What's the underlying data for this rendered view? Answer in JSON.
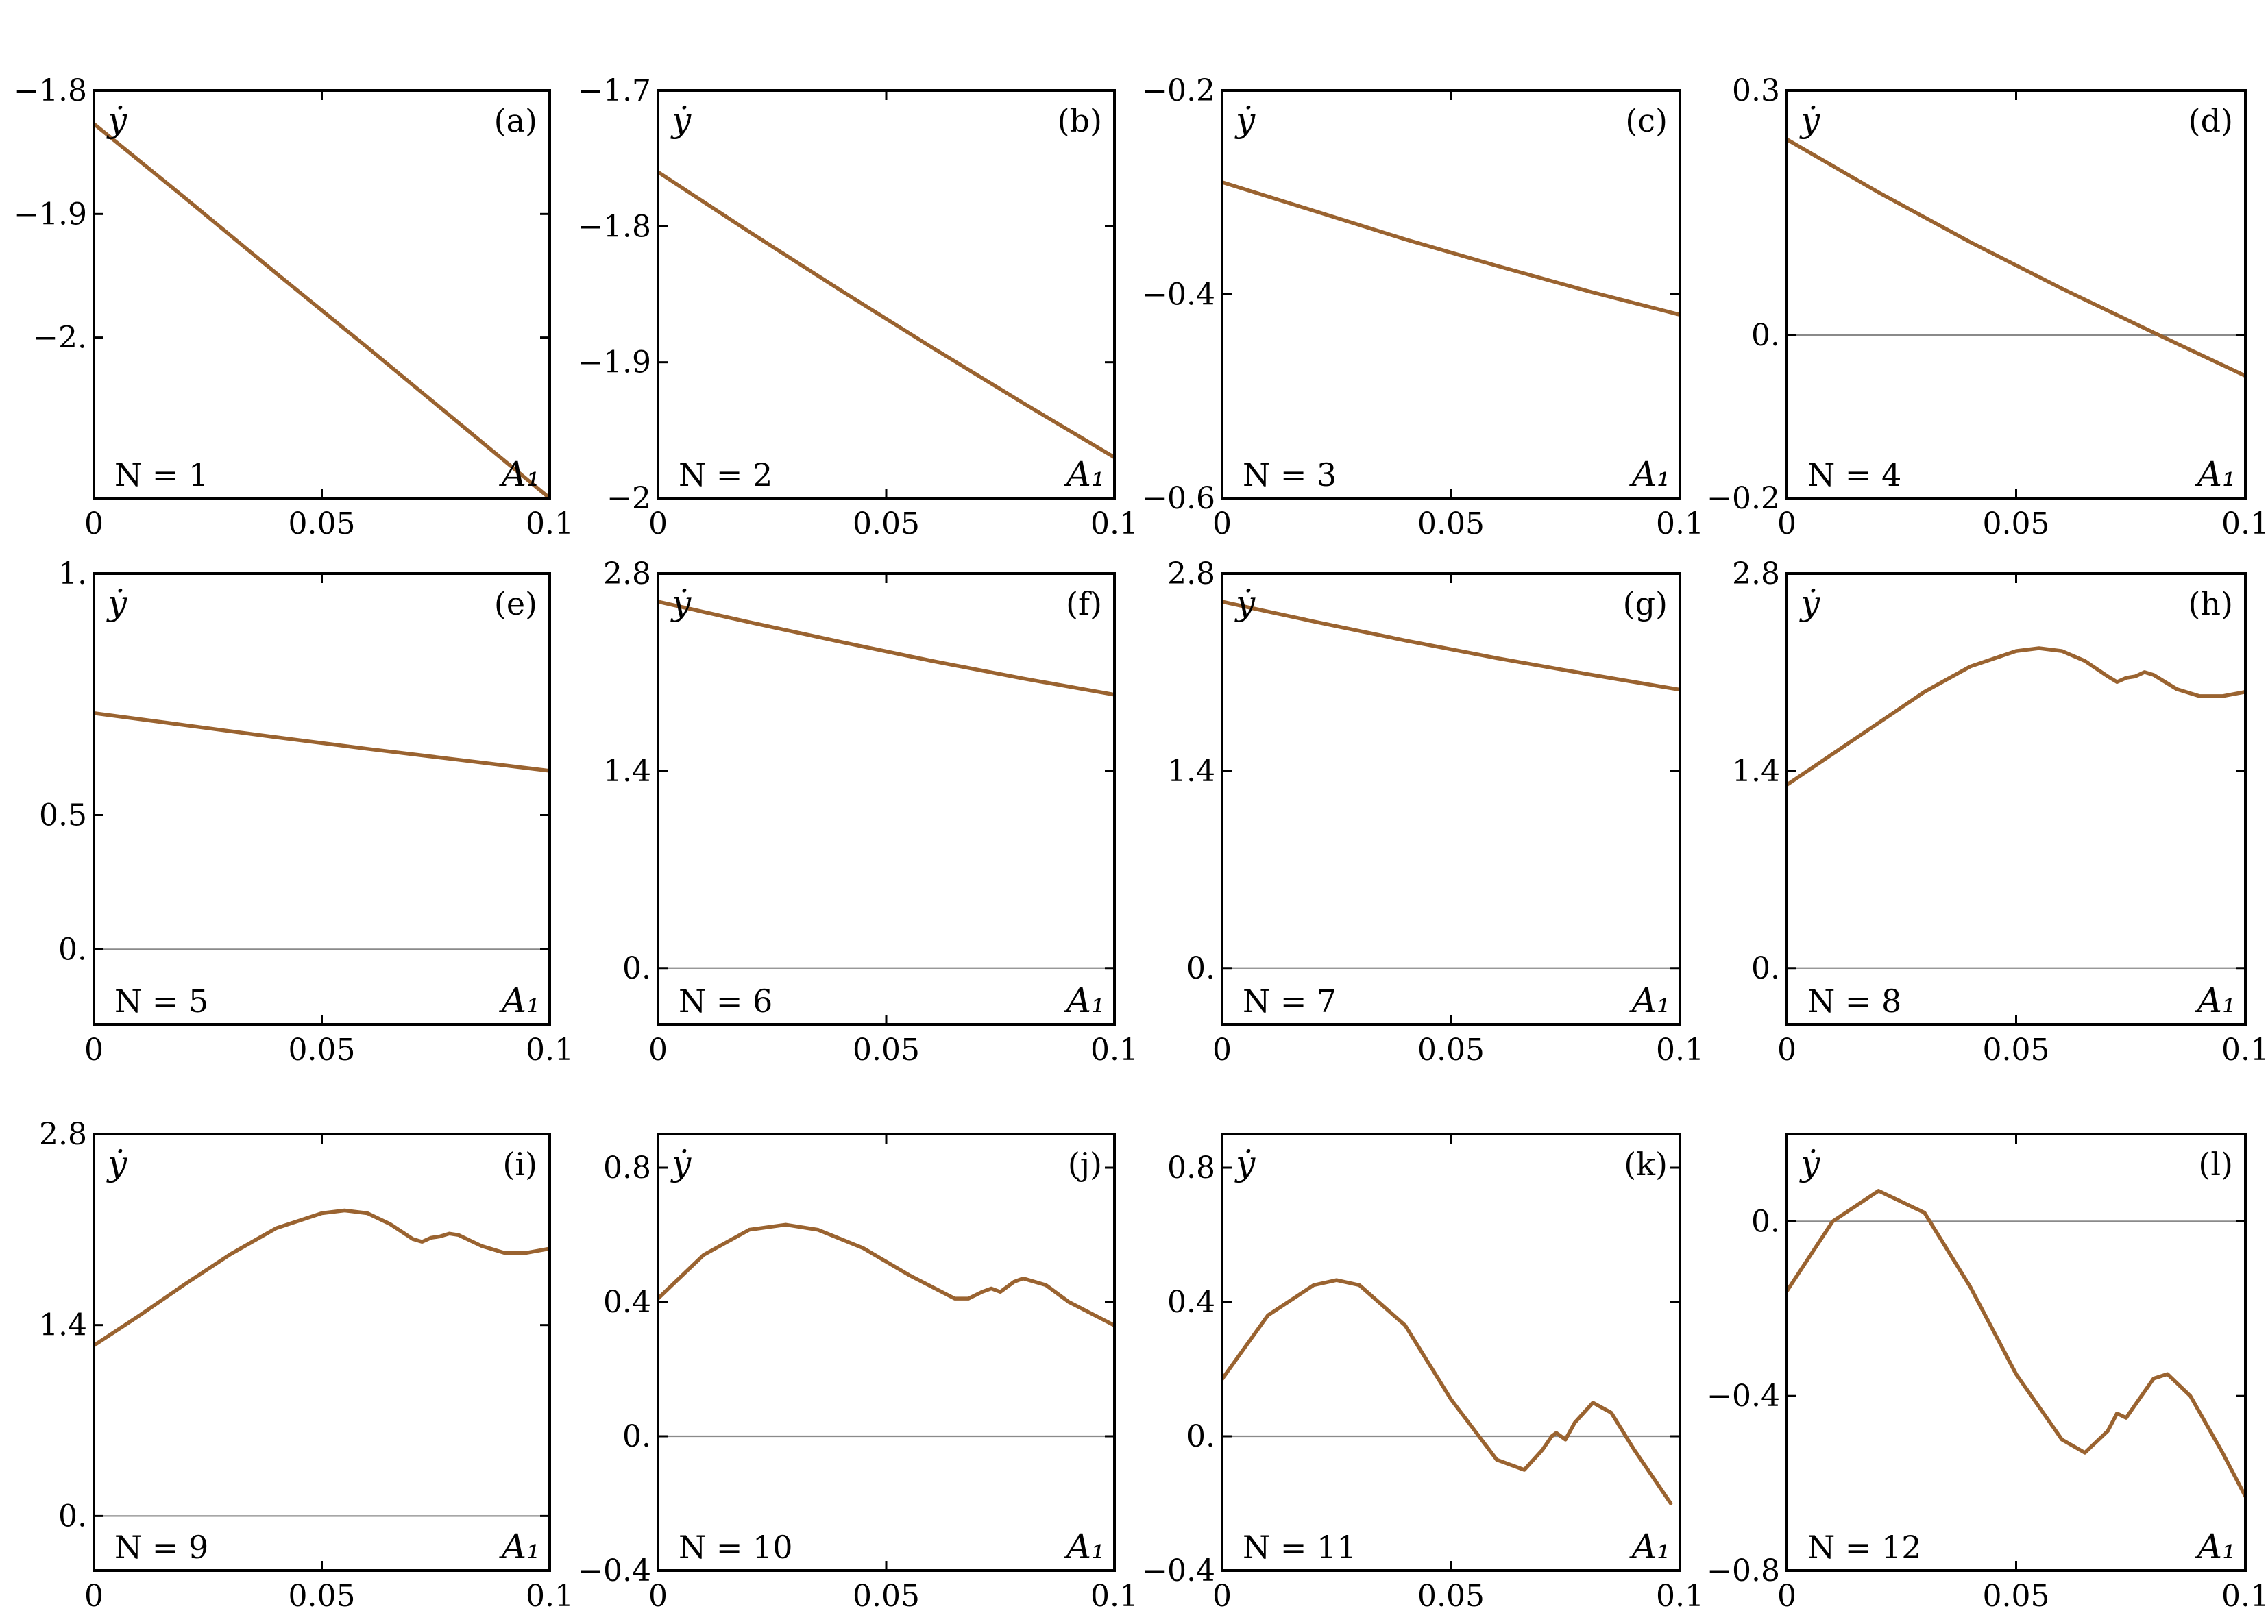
{
  "colors": {
    "curve": "#9a6330",
    "zero_line": "#8a8a8a",
    "frame": "#000000"
  },
  "chart_data": [
    {
      "type": "line",
      "panel": "(a)",
      "n_label": "N = 1",
      "xlabel": "A₁",
      "ylabel": "ẏ",
      "xlim": [
        0,
        0.1
      ],
      "ylim": [
        -2.13,
        -1.8
      ],
      "xticks": [
        {
          "v": 0,
          "label": "0"
        },
        {
          "v": 0.05,
          "label": "0.05"
        },
        {
          "v": 0.1,
          "label": "0.1"
        }
      ],
      "yticks": [
        {
          "v": -1.8,
          "label": "−1.8"
        },
        {
          "v": -1.9,
          "label": "−1.9"
        },
        {
          "v": -2.0,
          "label": "−2."
        }
      ],
      "zero_line": false,
      "x": [
        0,
        0.02,
        0.04,
        0.06,
        0.08,
        0.1
      ],
      "y": [
        -1.827,
        -1.887,
        -1.948,
        -2.008,
        -2.069,
        -2.13
      ]
    },
    {
      "type": "line",
      "panel": "(b)",
      "n_label": "N = 2",
      "xlabel": "A₁",
      "ylabel": "ẏ",
      "xlim": [
        0,
        0.1
      ],
      "ylim": [
        -2.0,
        -1.7
      ],
      "xticks": [
        {
          "v": 0,
          "label": "0"
        },
        {
          "v": 0.05,
          "label": "0.05"
        },
        {
          "v": 0.1,
          "label": "0.1"
        }
      ],
      "yticks": [
        {
          "v": -1.7,
          "label": "−1.7"
        },
        {
          "v": -1.8,
          "label": "−1.8"
        },
        {
          "v": -1.9,
          "label": "−1.9"
        },
        {
          "v": -2.0,
          "label": "−2"
        }
      ],
      "zero_line": false,
      "x": [
        0,
        0.02,
        0.04,
        0.06,
        0.08,
        0.1
      ],
      "y": [
        -1.76,
        -1.804,
        -1.847,
        -1.889,
        -1.93,
        -1.97
      ]
    },
    {
      "type": "line",
      "panel": "(c)",
      "n_label": "N = 3",
      "xlabel": "A₁",
      "ylabel": "ẏ",
      "xlim": [
        0,
        0.1
      ],
      "ylim": [
        -0.6,
        -0.2
      ],
      "xticks": [
        {
          "v": 0,
          "label": "0"
        },
        {
          "v": 0.05,
          "label": "0.05"
        },
        {
          "v": 0.1,
          "label": "0.1"
        }
      ],
      "yticks": [
        {
          "v": -0.2,
          "label": "−0.2"
        },
        {
          "v": -0.4,
          "label": "−0.4"
        },
        {
          "v": -0.6,
          "label": "−0.6"
        }
      ],
      "zero_line": false,
      "x": [
        0,
        0.02,
        0.04,
        0.06,
        0.08,
        0.1
      ],
      "y": [
        -0.29,
        -0.318,
        -0.346,
        -0.372,
        -0.397,
        -0.42
      ]
    },
    {
      "type": "line",
      "panel": "(d)",
      "n_label": "N = 4",
      "xlabel": "A₁",
      "ylabel": "ẏ",
      "xlim": [
        0,
        0.1
      ],
      "ylim": [
        -0.2,
        0.3
      ],
      "xticks": [
        {
          "v": 0,
          "label": "0"
        },
        {
          "v": 0.05,
          "label": "0.05"
        },
        {
          "v": 0.1,
          "label": "0.1"
        }
      ],
      "yticks": [
        {
          "v": 0.3,
          "label": "0.3"
        },
        {
          "v": 0.0,
          "label": "0."
        },
        {
          "v": -0.2,
          "label": "−0.2"
        }
      ],
      "zero_line": true,
      "x": [
        0,
        0.02,
        0.04,
        0.06,
        0.08,
        0.1
      ],
      "y": [
        0.24,
        0.175,
        0.114,
        0.057,
        0.003,
        -0.05
      ]
    },
    {
      "type": "line",
      "panel": "(e)",
      "n_label": "N = 5",
      "xlabel": "A₁",
      "ylabel": "ẏ",
      "xlim": [
        0,
        0.1
      ],
      "ylim": [
        -0.28,
        1.4
      ],
      "xticks": [
        {
          "v": 0,
          "label": "0"
        },
        {
          "v": 0.05,
          "label": "0.05"
        },
        {
          "v": 0.1,
          "label": "0.1"
        }
      ],
      "yticks": [
        {
          "v": 1.4,
          "label": "1."
        },
        {
          "v": 0.5,
          "label": "0.5"
        },
        {
          "v": 0.0,
          "label": "0."
        }
      ],
      "zero_line": true,
      "x": [
        0,
        0.02,
        0.04,
        0.06,
        0.08,
        0.1
      ],
      "y": [
        0.88,
        0.835,
        0.79,
        0.747,
        0.706,
        0.665
      ]
    },
    {
      "type": "line",
      "panel": "(f)",
      "n_label": "N = 6",
      "xlabel": "A₁",
      "ylabel": "ẏ",
      "xlim": [
        0,
        0.1
      ],
      "ylim": [
        -0.4,
        2.8
      ],
      "xticks": [
        {
          "v": 0,
          "label": "0"
        },
        {
          "v": 0.05,
          "label": "0.05"
        },
        {
          "v": 0.1,
          "label": "0.1"
        }
      ],
      "yticks": [
        {
          "v": 2.8,
          "label": "2.8"
        },
        {
          "v": 1.4,
          "label": "1.4"
        },
        {
          "v": 0.0,
          "label": "0."
        }
      ],
      "zero_line": true,
      "x": [
        0,
        0.02,
        0.04,
        0.06,
        0.08,
        0.1
      ],
      "y": [
        2.6,
        2.455,
        2.315,
        2.18,
        2.055,
        1.94
      ]
    },
    {
      "type": "line",
      "panel": "(g)",
      "n_label": "N = 7",
      "xlabel": "A₁",
      "ylabel": "ẏ",
      "xlim": [
        0,
        0.1
      ],
      "ylim": [
        -0.4,
        2.8
      ],
      "xticks": [
        {
          "v": 0,
          "label": "0"
        },
        {
          "v": 0.05,
          "label": "0.05"
        },
        {
          "v": 0.1,
          "label": "0.1"
        }
      ],
      "yticks": [
        {
          "v": 2.8,
          "label": "2.8"
        },
        {
          "v": 1.4,
          "label": "1.4"
        },
        {
          "v": 0.0,
          "label": "0."
        }
      ],
      "zero_line": true,
      "x": [
        0,
        0.02,
        0.04,
        0.06,
        0.08,
        0.1
      ],
      "y": [
        2.6,
        2.46,
        2.325,
        2.2,
        2.085,
        1.975
      ]
    },
    {
      "type": "line",
      "panel": "(h)",
      "n_label": "N = 8",
      "xlabel": "A₁",
      "ylabel": "ẏ",
      "xlim": [
        0,
        0.1
      ],
      "ylim": [
        -0.4,
        2.8
      ],
      "xticks": [
        {
          "v": 0,
          "label": "0"
        },
        {
          "v": 0.05,
          "label": "0.05"
        },
        {
          "v": 0.1,
          "label": "0.1"
        }
      ],
      "yticks": [
        {
          "v": 2.8,
          "label": "2.8"
        },
        {
          "v": 1.4,
          "label": "1.4"
        },
        {
          "v": 0.0,
          "label": "0."
        }
      ],
      "zero_line": true,
      "x": [
        0,
        0.01,
        0.02,
        0.03,
        0.04,
        0.05,
        0.055,
        0.06,
        0.065,
        0.07,
        0.072,
        0.074,
        0.076,
        0.078,
        0.08,
        0.085,
        0.09,
        0.095,
        0.1
      ],
      "y": [
        1.3,
        1.52,
        1.74,
        1.96,
        2.14,
        2.25,
        2.27,
        2.25,
        2.18,
        2.07,
        2.03,
        2.06,
        2.07,
        2.1,
        2.08,
        1.98,
        1.93,
        1.93,
        1.96
      ]
    },
    {
      "type": "line",
      "panel": "(i)",
      "n_label": "N = 9",
      "xlabel": "A₁",
      "ylabel": "ẏ",
      "xlim": [
        0,
        0.1
      ],
      "ylim": [
        -0.4,
        2.8
      ],
      "xticks": [
        {
          "v": 0,
          "label": "0"
        },
        {
          "v": 0.05,
          "label": "0.05"
        },
        {
          "v": 0.1,
          "label": "0.1"
        }
      ],
      "yticks": [
        {
          "v": 2.8,
          "label": "2.8"
        },
        {
          "v": 1.4,
          "label": "1.4"
        },
        {
          "v": 0.0,
          "label": "0."
        }
      ],
      "zero_line": true,
      "x": [
        0,
        0.01,
        0.02,
        0.03,
        0.04,
        0.05,
        0.055,
        0.06,
        0.065,
        0.07,
        0.072,
        0.074,
        0.076,
        0.078,
        0.08,
        0.085,
        0.09,
        0.095,
        0.1
      ],
      "y": [
        1.25,
        1.47,
        1.7,
        1.92,
        2.11,
        2.22,
        2.24,
        2.22,
        2.14,
        2.03,
        2.01,
        2.04,
        2.05,
        2.07,
        2.06,
        1.98,
        1.93,
        1.93,
        1.96
      ]
    },
    {
      "type": "line",
      "panel": "(j)",
      "n_label": "N = 10",
      "xlabel": "A₁",
      "ylabel": "ẏ",
      "xlim": [
        0,
        0.1
      ],
      "ylim": [
        -0.4,
        0.9
      ],
      "xticks": [
        {
          "v": 0,
          "label": "0"
        },
        {
          "v": 0.05,
          "label": "0.05"
        },
        {
          "v": 0.1,
          "label": "0.1"
        }
      ],
      "yticks": [
        {
          "v": 0.8,
          "label": "0.8"
        },
        {
          "v": 0.4,
          "label": "0.4"
        },
        {
          "v": 0.0,
          "label": "0."
        },
        {
          "v": -0.4,
          "label": "−0.4"
        }
      ],
      "zero_line": true,
      "x": [
        0,
        0.01,
        0.02,
        0.028,
        0.035,
        0.045,
        0.055,
        0.065,
        0.068,
        0.071,
        0.073,
        0.075,
        0.078,
        0.08,
        0.085,
        0.09,
        0.1
      ],
      "y": [
        0.41,
        0.54,
        0.615,
        0.63,
        0.615,
        0.56,
        0.48,
        0.41,
        0.41,
        0.43,
        0.44,
        0.43,
        0.46,
        0.47,
        0.45,
        0.4,
        0.33
      ]
    },
    {
      "type": "line",
      "panel": "(k)",
      "n_label": "N = 11",
      "xlabel": "A₁",
      "ylabel": "ẏ",
      "xlim": [
        0,
        0.1
      ],
      "ylim": [
        -0.4,
        0.9
      ],
      "xticks": [
        {
          "v": 0,
          "label": "0"
        },
        {
          "v": 0.05,
          "label": "0.05"
        },
        {
          "v": 0.1,
          "label": "0.1"
        }
      ],
      "yticks": [
        {
          "v": 0.8,
          "label": "0.8"
        },
        {
          "v": 0.4,
          "label": "0.4"
        },
        {
          "v": 0.0,
          "label": "0."
        },
        {
          "v": -0.4,
          "label": "−0.4"
        }
      ],
      "zero_line": true,
      "x": [
        0,
        0.01,
        0.02,
        0.025,
        0.03,
        0.04,
        0.05,
        0.06,
        0.066,
        0.07,
        0.072,
        0.073,
        0.075,
        0.077,
        0.081,
        0.085,
        0.09,
        0.098
      ],
      "y": [
        0.17,
        0.36,
        0.45,
        0.465,
        0.45,
        0.33,
        0.11,
        -0.07,
        -0.1,
        -0.04,
        0.0,
        0.01,
        -0.01,
        0.04,
        0.1,
        0.07,
        -0.04,
        -0.2
      ]
    },
    {
      "type": "line",
      "panel": "(l)",
      "n_label": "N = 12",
      "xlabel": "A₁",
      "ylabel": "ẏ",
      "xlim": [
        0,
        0.1
      ],
      "ylim": [
        -0.8,
        0.2
      ],
      "xticks": [
        {
          "v": 0,
          "label": "0"
        },
        {
          "v": 0.05,
          "label": "0.05"
        },
        {
          "v": 0.1,
          "label": "0.1"
        }
      ],
      "yticks": [
        {
          "v": 0.0,
          "label": "0."
        },
        {
          "v": -0.4,
          "label": "−0.4"
        },
        {
          "v": -0.8,
          "label": "−0.8"
        }
      ],
      "zero_line": true,
      "x": [
        0,
        0.01,
        0.02,
        0.03,
        0.04,
        0.05,
        0.06,
        0.065,
        0.07,
        0.072,
        0.074,
        0.076,
        0.08,
        0.083,
        0.088,
        0.095,
        0.1
      ],
      "y": [
        -0.16,
        0.0,
        0.07,
        0.02,
        -0.15,
        -0.35,
        -0.5,
        -0.53,
        -0.48,
        -0.44,
        -0.45,
        -0.42,
        -0.36,
        -0.35,
        -0.4,
        -0.53,
        -0.63
      ]
    }
  ]
}
